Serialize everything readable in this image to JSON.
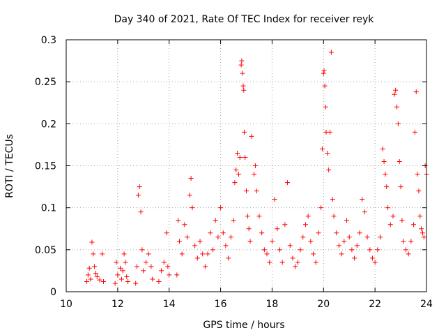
{
  "chart_data": {
    "type": "scatter",
    "title": "Day 340 of 2021, Rate Of TEC Index for receiver reyk",
    "xlabel": "GPS time / hours",
    "ylabel": "ROTI / TECUs",
    "xlim": [
      10,
      24
    ],
    "ylim": [
      0,
      0.3
    ],
    "xticks": [
      10,
      12,
      14,
      16,
      18,
      20,
      22,
      24
    ],
    "xtick_labels": [
      "10",
      "12",
      "14",
      "16",
      "18",
      "20",
      "22",
      "24"
    ],
    "yticks": [
      0,
      0.05,
      0.1,
      0.15,
      0.2,
      0.25,
      0.3
    ],
    "ytick_labels": [
      "0",
      "0.05",
      "0.1",
      "0.15",
      "0.2",
      "0.25",
      "0.3"
    ],
    "grid": true,
    "marker": "+",
    "color": "#ff0000",
    "series": [
      {
        "name": "ROTI",
        "points": [
          [
            10.8,
            0.012
          ],
          [
            10.85,
            0.02
          ],
          [
            10.9,
            0.028
          ],
          [
            10.95,
            0.015
          ],
          [
            11.0,
            0.059
          ],
          [
            11.05,
            0.045
          ],
          [
            11.1,
            0.03
          ],
          [
            11.15,
            0.022
          ],
          [
            11.2,
            0.018
          ],
          [
            11.3,
            0.014
          ],
          [
            11.4,
            0.045
          ],
          [
            11.45,
            0.012
          ],
          [
            11.9,
            0.01
          ],
          [
            11.95,
            0.035
          ],
          [
            12.0,
            0.02
          ],
          [
            12.1,
            0.028
          ],
          [
            12.15,
            0.015
          ],
          [
            12.2,
            0.025
          ],
          [
            12.25,
            0.045
          ],
          [
            12.3,
            0.035
          ],
          [
            12.35,
            0.018
          ],
          [
            12.4,
            0.012
          ],
          [
            12.7,
            0.01
          ],
          [
            12.75,
            0.03
          ],
          [
            12.8,
            0.115
          ],
          [
            12.85,
            0.125
          ],
          [
            12.9,
            0.095
          ],
          [
            12.95,
            0.05
          ],
          [
            13.0,
            0.025
          ],
          [
            13.1,
            0.035
          ],
          [
            13.2,
            0.045
          ],
          [
            13.3,
            0.03
          ],
          [
            13.35,
            0.015
          ],
          [
            13.6,
            0.012
          ],
          [
            13.7,
            0.025
          ],
          [
            13.8,
            0.035
          ],
          [
            13.9,
            0.07
          ],
          [
            13.95,
            0.03
          ],
          [
            14.0,
            0.02
          ],
          [
            14.3,
            0.02
          ],
          [
            14.35,
            0.085
          ],
          [
            14.4,
            0.06
          ],
          [
            14.5,
            0.045
          ],
          [
            14.6,
            0.08
          ],
          [
            14.7,
            0.065
          ],
          [
            14.8,
            0.115
          ],
          [
            14.85,
            0.135
          ],
          [
            14.9,
            0.1
          ],
          [
            15.0,
            0.055
          ],
          [
            15.1,
            0.04
          ],
          [
            15.2,
            0.06
          ],
          [
            15.3,
            0.045
          ],
          [
            15.4,
            0.03
          ],
          [
            15.5,
            0.045
          ],
          [
            15.6,
            0.07
          ],
          [
            15.7,
            0.05
          ],
          [
            15.8,
            0.085
          ],
          [
            15.9,
            0.065
          ],
          [
            16.0,
            0.1
          ],
          [
            16.1,
            0.07
          ],
          [
            16.2,
            0.055
          ],
          [
            16.3,
            0.04
          ],
          [
            16.4,
            0.065
          ],
          [
            16.5,
            0.085
          ],
          [
            16.55,
            0.13
          ],
          [
            16.6,
            0.145
          ],
          [
            16.65,
            0.165
          ],
          [
            16.7,
            0.14
          ],
          [
            16.75,
            0.16
          ],
          [
            16.8,
            0.27
          ],
          [
            16.82,
            0.275
          ],
          [
            16.85,
            0.26
          ],
          [
            16.88,
            0.245
          ],
          [
            16.9,
            0.24
          ],
          [
            16.92,
            0.19
          ],
          [
            16.95,
            0.16
          ],
          [
            17.0,
            0.12
          ],
          [
            17.05,
            0.09
          ],
          [
            17.1,
            0.075
          ],
          [
            17.15,
            0.06
          ],
          [
            17.2,
            0.185
          ],
          [
            17.3,
            0.14
          ],
          [
            17.35,
            0.15
          ],
          [
            17.4,
            0.12
          ],
          [
            17.5,
            0.09
          ],
          [
            17.6,
            0.07
          ],
          [
            17.7,
            0.05
          ],
          [
            17.8,
            0.045
          ],
          [
            17.9,
            0.035
          ],
          [
            18.0,
            0.06
          ],
          [
            18.1,
            0.11
          ],
          [
            18.2,
            0.075
          ],
          [
            18.3,
            0.05
          ],
          [
            18.4,
            0.035
          ],
          [
            18.5,
            0.08
          ],
          [
            18.6,
            0.13
          ],
          [
            18.7,
            0.055
          ],
          [
            18.8,
            0.04
          ],
          [
            18.9,
            0.03
          ],
          [
            19.0,
            0.035
          ],
          [
            19.1,
            0.05
          ],
          [
            19.2,
            0.065
          ],
          [
            19.3,
            0.08
          ],
          [
            19.4,
            0.09
          ],
          [
            19.5,
            0.06
          ],
          [
            19.6,
            0.045
          ],
          [
            19.7,
            0.035
          ],
          [
            19.8,
            0.07
          ],
          [
            19.9,
            0.1
          ],
          [
            19.95,
            0.17
          ],
          [
            20.0,
            0.26
          ],
          [
            20.02,
            0.263
          ],
          [
            20.05,
            0.245
          ],
          [
            20.08,
            0.22
          ],
          [
            20.1,
            0.19
          ],
          [
            20.15,
            0.165
          ],
          [
            20.2,
            0.145
          ],
          [
            20.25,
            0.19
          ],
          [
            20.3,
            0.285
          ],
          [
            20.35,
            0.11
          ],
          [
            20.4,
            0.09
          ],
          [
            20.5,
            0.07
          ],
          [
            20.6,
            0.055
          ],
          [
            20.7,
            0.045
          ],
          [
            20.8,
            0.06
          ],
          [
            20.9,
            0.085
          ],
          [
            21.0,
            0.065
          ],
          [
            21.1,
            0.05
          ],
          [
            21.2,
            0.04
          ],
          [
            21.3,
            0.055
          ],
          [
            21.4,
            0.07
          ],
          [
            21.5,
            0.11
          ],
          [
            21.6,
            0.095
          ],
          [
            21.7,
            0.065
          ],
          [
            21.8,
            0.05
          ],
          [
            21.9,
            0.04
          ],
          [
            22.0,
            0.035
          ],
          [
            22.1,
            0.05
          ],
          [
            22.2,
            0.065
          ],
          [
            22.3,
            0.17
          ],
          [
            22.35,
            0.155
          ],
          [
            22.4,
            0.14
          ],
          [
            22.45,
            0.125
          ],
          [
            22.5,
            0.1
          ],
          [
            22.6,
            0.08
          ],
          [
            22.7,
            0.09
          ],
          [
            22.75,
            0.235
          ],
          [
            22.8,
            0.24
          ],
          [
            22.85,
            0.22
          ],
          [
            22.9,
            0.2
          ],
          [
            22.95,
            0.155
          ],
          [
            23.0,
            0.125
          ],
          [
            23.05,
            0.085
          ],
          [
            23.1,
            0.06
          ],
          [
            23.2,
            0.05
          ],
          [
            23.3,
            0.045
          ],
          [
            23.4,
            0.06
          ],
          [
            23.5,
            0.08
          ],
          [
            23.55,
            0.19
          ],
          [
            23.6,
            0.238
          ],
          [
            23.65,
            0.14
          ],
          [
            23.7,
            0.12
          ],
          [
            23.75,
            0.09
          ],
          [
            23.8,
            0.075
          ],
          [
            23.85,
            0.07
          ],
          [
            23.9,
            0.065
          ],
          [
            23.95,
            0.15
          ],
          [
            24.0,
            0.14
          ]
        ]
      }
    ]
  }
}
